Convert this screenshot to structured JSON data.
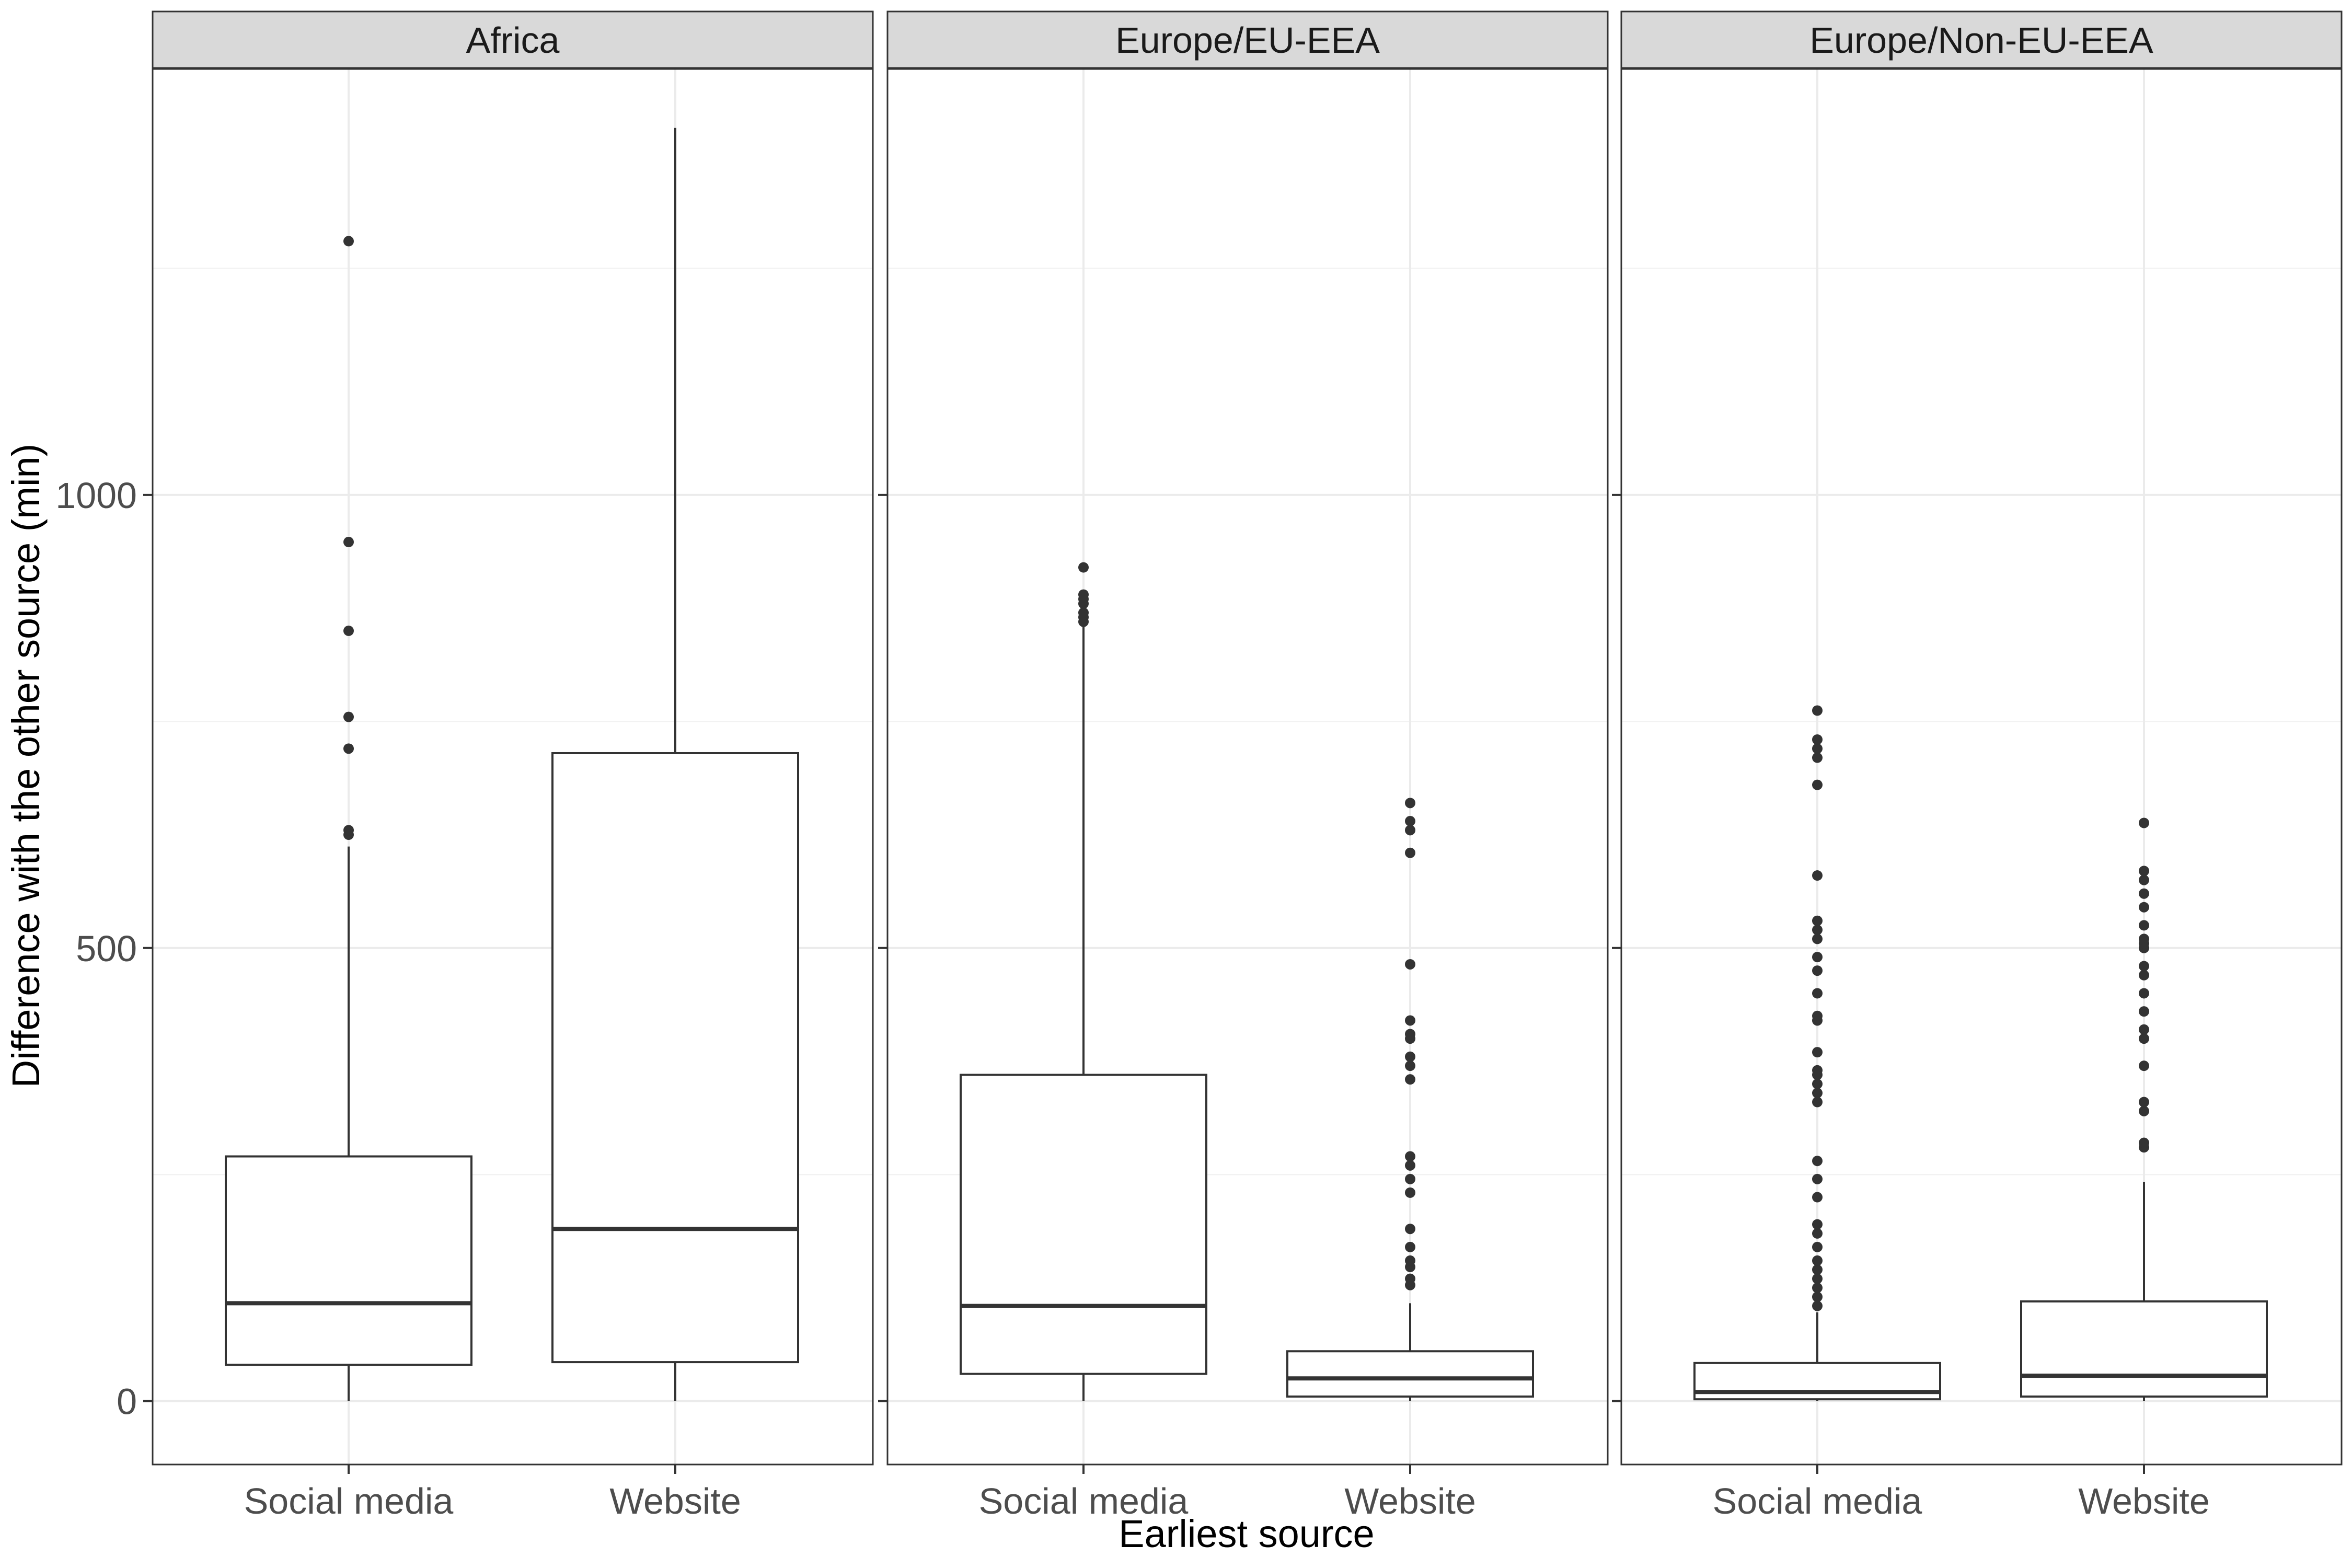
{
  "chart_data": {
    "type": "boxplot",
    "xlabel": "Earliest source",
    "ylabel": "Difference with the other source (min)",
    "categories": [
      "Social media",
      "Website"
    ],
    "y_ticks": [
      0,
      500,
      1000
    ],
    "ylim": [
      -70,
      1470
    ],
    "grid": true,
    "facets": [
      {
        "label": "Africa",
        "boxes": [
          {
            "category": "Social media",
            "min": 0,
            "q1": 40,
            "median": 108,
            "q3": 270,
            "max": 612,
            "outliers": [
              625,
              630,
              720,
              755,
              850,
              948,
              1280
            ]
          },
          {
            "category": "Website",
            "min": 0,
            "q1": 43,
            "median": 190,
            "q3": 715,
            "max": 1405,
            "outliers": []
          }
        ]
      },
      {
        "label": "Europe/EU-EEA",
        "boxes": [
          {
            "category": "Social media",
            "min": 0,
            "q1": 30,
            "median": 105,
            "q3": 360,
            "max": 855,
            "outliers": [
              860,
              865,
              870,
              880,
              885,
              890,
              920
            ]
          },
          {
            "category": "Website",
            "min": 0,
            "q1": 5,
            "median": 25,
            "q3": 55,
            "max": 108,
            "outliers": [
              128,
              135,
              148,
              155,
              170,
              190,
              230,
              245,
              260,
              270,
              355,
              370,
              380,
              400,
              405,
              420,
              482,
              605,
              630,
              640,
              660
            ]
          }
        ]
      },
      {
        "label": "Europe/Non-EU-EEA",
        "boxes": [
          {
            "category": "Social media",
            "min": 0,
            "q1": 2,
            "median": 10,
            "q3": 42,
            "max": 98,
            "outliers": [
              105,
              115,
              125,
              135,
              145,
              155,
              170,
              185,
              195,
              225,
              245,
              265,
              330,
              340,
              350,
              360,
              365,
              385,
              420,
              425,
              450,
              475,
              490,
              510,
              520,
              530,
              580,
              680,
              710,
              720,
              730,
              762
            ]
          },
          {
            "category": "Website",
            "min": 0,
            "q1": 5,
            "median": 28,
            "q3": 110,
            "max": 242,
            "outliers": [
              280,
              285,
              320,
              330,
              370,
              400,
              410,
              430,
              450,
              470,
              480,
              500,
              505,
              510,
              525,
              545,
              560,
              575,
              585,
              638
            ]
          }
        ]
      }
    ]
  }
}
